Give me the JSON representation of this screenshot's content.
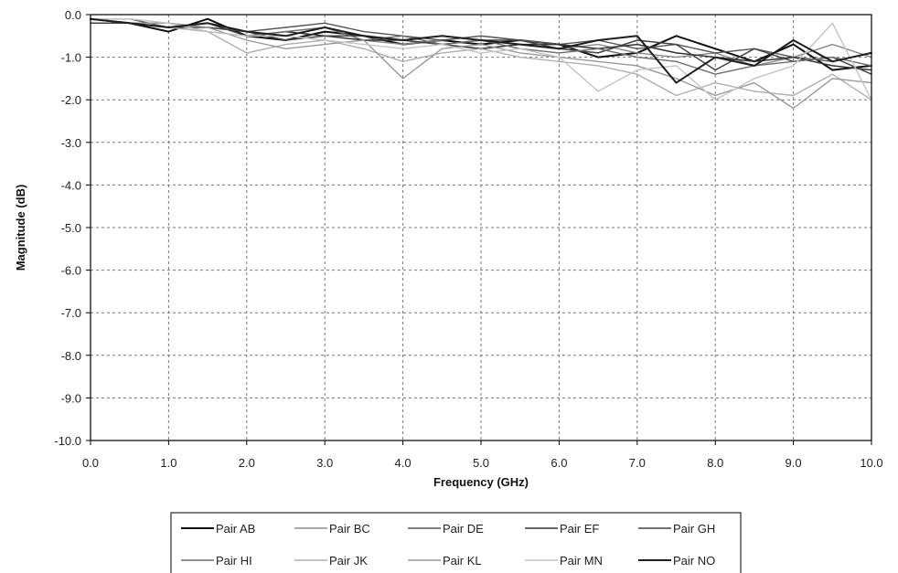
{
  "chart_data": {
    "type": "line",
    "title": "",
    "xlabel": "Frequency (GHz)",
    "ylabel": "Magnitude (dB)",
    "xlim": [
      0,
      10
    ],
    "ylim": [
      -10,
      0
    ],
    "x_ticks": [
      "0.0",
      "1.0",
      "2.0",
      "3.0",
      "4.0",
      "5.0",
      "6.0",
      "7.0",
      "8.0",
      "9.0",
      "10.0"
    ],
    "y_ticks": [
      "0.0",
      "-1.0",
      "-2.0",
      "-3.0",
      "-4.0",
      "-5.0",
      "-6.0",
      "-7.0",
      "-8.0",
      "-9.0",
      "-10.0"
    ],
    "grid": true,
    "legend_position": "bottom",
    "x": [
      0,
      0.5,
      1,
      1.5,
      2,
      2.5,
      3,
      3.5,
      4,
      4.5,
      5,
      5.5,
      6,
      6.5,
      7,
      7.5,
      8,
      8.5,
      9,
      9.5,
      10
    ],
    "series": [
      {
        "name": "Pair AB",
        "color": "#111111",
        "width": 2.0,
        "values": [
          -0.1,
          -0.2,
          -0.4,
          -0.1,
          -0.5,
          -0.6,
          -0.4,
          -0.5,
          -0.7,
          -0.6,
          -0.7,
          -0.6,
          -0.7,
          -1.0,
          -0.9,
          -0.5,
          -0.8,
          -1.1,
          -0.7,
          -1.3,
          -1.2
        ]
      },
      {
        "name": "Pair BC",
        "color": "#8a8a8a",
        "width": 1.4,
        "values": [
          -0.1,
          -0.2,
          -0.2,
          -0.3,
          -0.4,
          -0.5,
          -0.3,
          -0.6,
          -0.7,
          -0.6,
          -0.5,
          -0.6,
          -0.8,
          -0.7,
          -0.9,
          -1.0,
          -0.9,
          -1.2,
          -1.0,
          -0.7,
          -1.0
        ]
      },
      {
        "name": "Pair DE",
        "color": "#555555",
        "width": 1.4,
        "values": [
          -0.1,
          -0.1,
          -0.3,
          -0.2,
          -0.4,
          -0.3,
          -0.2,
          -0.4,
          -0.5,
          -0.6,
          -0.5,
          -0.6,
          -0.7,
          -0.6,
          -0.8,
          -0.7,
          -0.9,
          -0.8,
          -1.0,
          -1.1,
          -0.9
        ]
      },
      {
        "name": "Pair EF",
        "color": "#333333",
        "width": 1.5,
        "values": [
          -0.1,
          -0.2,
          -0.3,
          -0.2,
          -0.5,
          -0.4,
          -0.5,
          -0.6,
          -0.6,
          -0.7,
          -0.8,
          -0.7,
          -0.7,
          -0.8,
          -0.7,
          -0.9,
          -1.0,
          -1.1,
          -1.0,
          -1.2,
          -1.3
        ]
      },
      {
        "name": "Pair GH",
        "color": "#444444",
        "width": 1.5,
        "values": [
          -0.2,
          -0.2,
          -0.3,
          -0.3,
          -0.4,
          -0.6,
          -0.5,
          -0.5,
          -0.6,
          -0.7,
          -0.6,
          -0.6,
          -0.8,
          -0.9,
          -0.6,
          -0.7,
          -1.3,
          -0.8,
          -1.1,
          -1.0,
          -1.4
        ]
      },
      {
        "name": "Pair HI",
        "color": "#6e6e6e",
        "width": 1.4,
        "values": [
          -0.1,
          -0.2,
          -0.2,
          -0.4,
          -0.5,
          -0.4,
          -0.3,
          -0.6,
          -0.5,
          -0.7,
          -0.6,
          -0.8,
          -0.9,
          -0.8,
          -1.0,
          -1.1,
          -1.4,
          -1.2,
          -1.1,
          -1.0,
          -1.2
        ]
      },
      {
        "name": "Pair JK",
        "color": "#b0b0b0",
        "width": 1.4,
        "values": [
          -0.1,
          -0.2,
          -0.3,
          -0.4,
          -0.9,
          -0.7,
          -0.6,
          -0.8,
          -1.1,
          -0.9,
          -0.8,
          -1.0,
          -1.1,
          -1.2,
          -1.4,
          -1.9,
          -1.6,
          -1.8,
          -1.9,
          -1.4,
          -2.0
        ]
      },
      {
        "name": "Pair KL",
        "color": "#9a9a9a",
        "width": 1.4,
        "values": [
          -0.1,
          -0.2,
          -0.2,
          -0.3,
          -0.6,
          -0.8,
          -0.7,
          -0.6,
          -1.5,
          -0.8,
          -0.7,
          -0.9,
          -1.0,
          -1.1,
          -1.2,
          -1.5,
          -1.9,
          -1.6,
          -2.2,
          -1.5,
          -1.6
        ]
      },
      {
        "name": "Pair MN",
        "color": "#c4c4c4",
        "width": 1.4,
        "values": [
          -0.1,
          -0.1,
          -0.2,
          -0.4,
          -0.5,
          -0.5,
          -0.6,
          -0.7,
          -0.8,
          -0.7,
          -0.9,
          -0.8,
          -1.0,
          -1.8,
          -1.3,
          -1.2,
          -2.0,
          -1.5,
          -1.2,
          -0.2,
          -2.0
        ]
      },
      {
        "name": "Pair NO",
        "color": "#1e1e1e",
        "width": 2.0,
        "values": [
          -0.1,
          -0.2,
          -0.3,
          -0.2,
          -0.4,
          -0.5,
          -0.3,
          -0.5,
          -0.6,
          -0.5,
          -0.6,
          -0.7,
          -0.8,
          -0.6,
          -0.5,
          -1.6,
          -1.0,
          -1.2,
          -0.6,
          -1.1,
          -0.9
        ]
      }
    ]
  }
}
